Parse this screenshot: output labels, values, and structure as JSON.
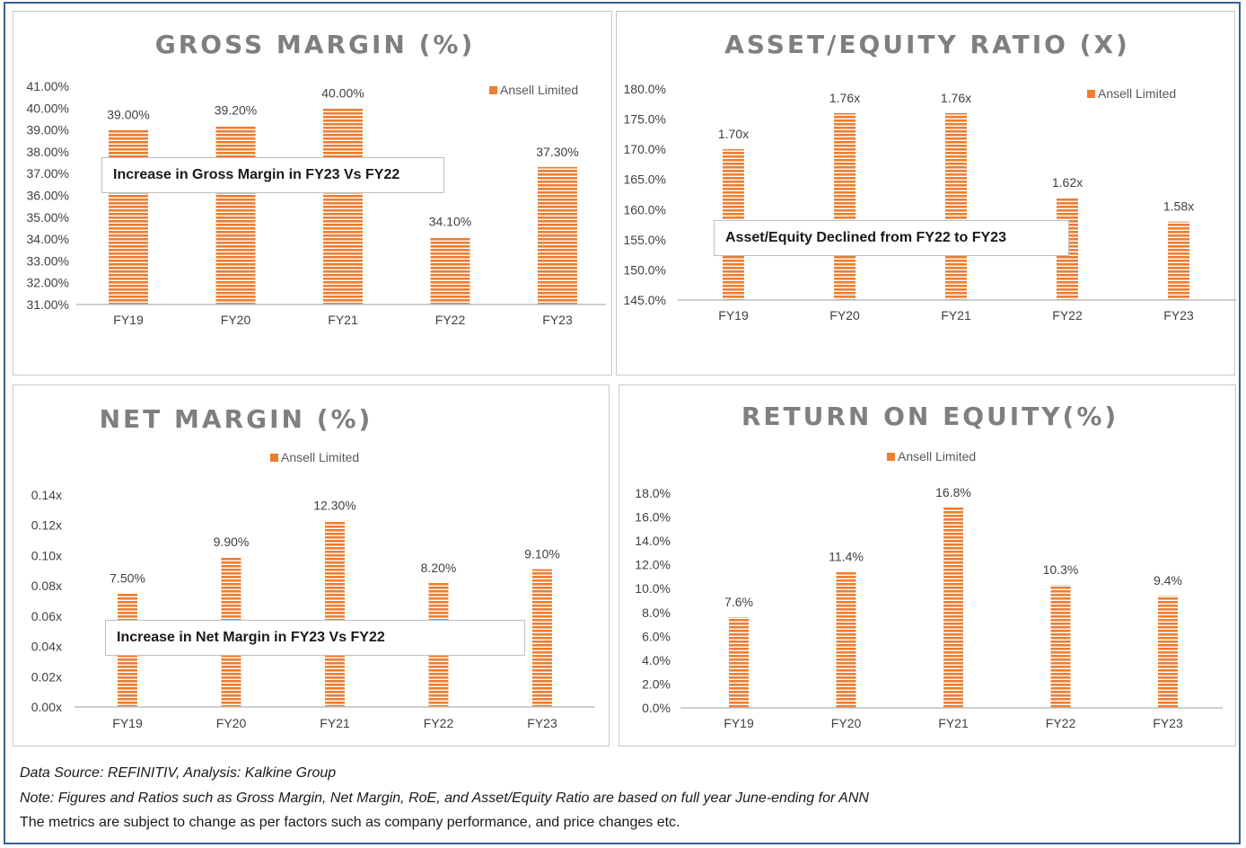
{
  "legend_label": "Ansell Limited",
  "colors": {
    "bar": "#ed7d31",
    "stripe": "#ffffff",
    "axis": "#bfbfbf",
    "border": "#3a5f96"
  },
  "chart_data": [
    {
      "type": "bar",
      "title": "GROSS MARGIN (%)",
      "categories": [
        "FY19",
        "FY20",
        "FY21",
        "FY22",
        "FY23"
      ],
      "series": [
        {
          "name": "Ansell Limited",
          "values": [
            39.0,
            39.2,
            40.0,
            34.1,
            37.3
          ]
        }
      ],
      "data_labels": [
        "39.00%",
        "39.20%",
        "40.00%",
        "34.10%",
        "37.30%"
      ],
      "ylim": [
        31,
        41
      ],
      "yticks": [
        31,
        32,
        33,
        34,
        35,
        36,
        37,
        38,
        39,
        40,
        41
      ],
      "ytick_labels": [
        "31.00%",
        "32.00%",
        "33.00%",
        "34.00%",
        "35.00%",
        "36.00%",
        "37.00%",
        "38.00%",
        "39.00%",
        "40.00%",
        "41.00%"
      ],
      "legend_position": "top-right",
      "annotation": "Increase in Gross Margin in FY23 Vs FY22",
      "grid": false
    },
    {
      "type": "bar",
      "title": "ASSET/EQUITY RATIO (X)",
      "categories": [
        "FY19",
        "FY20",
        "FY21",
        "FY22",
        "FY23"
      ],
      "series": [
        {
          "name": "Ansell Limited",
          "values": [
            1.7,
            1.76,
            1.76,
            1.62,
            1.58
          ]
        }
      ],
      "data_labels": [
        "1.70x",
        "1.76x",
        "1.76x",
        "1.62x",
        "1.58x"
      ],
      "ylim": [
        1.45,
        1.8
      ],
      "yticks": [
        1.45,
        1.5,
        1.55,
        1.6,
        1.65,
        1.7,
        1.75,
        1.8
      ],
      "ytick_labels": [
        "145.0%",
        "150.0%",
        "155.0%",
        "160.0%",
        "165.0%",
        "170.0%",
        "175.0%",
        "180.0%"
      ],
      "legend_position": "top-right",
      "annotation": "Asset/Equity Declined from FY22 to FY23",
      "grid": false
    },
    {
      "type": "bar",
      "title": "NET MARGIN (%)",
      "categories": [
        "FY19",
        "FY20",
        "FY21",
        "FY22",
        "FY23"
      ],
      "series": [
        {
          "name": "Ansell Limited",
          "values": [
            0.075,
            0.099,
            0.123,
            0.082,
            0.091
          ]
        }
      ],
      "data_labels": [
        "7.50%",
        "9.90%",
        "12.30%",
        "8.20%",
        "9.10%"
      ],
      "ylim": [
        0,
        0.14
      ],
      "yticks": [
        0,
        0.02,
        0.04,
        0.06,
        0.08,
        0.1,
        0.12,
        0.14
      ],
      "ytick_labels": [
        "0.00x",
        "0.02x",
        "0.04x",
        "0.06x",
        "0.08x",
        "0.10x",
        "0.12x",
        "0.14x"
      ],
      "legend_position": "top",
      "annotation": "Increase in Net Margin in FY23 Vs FY22",
      "grid": false
    },
    {
      "type": "bar",
      "title": "RETURN ON EQUITY(%)",
      "categories": [
        "FY19",
        "FY20",
        "FY21",
        "FY22",
        "FY23"
      ],
      "series": [
        {
          "name": "Ansell Limited",
          "values": [
            7.6,
            11.4,
            16.8,
            10.3,
            9.4
          ]
        }
      ],
      "data_labels": [
        "7.6%",
        "11.4%",
        "16.8%",
        "10.3%",
        "9.4%"
      ],
      "ylim": [
        0,
        18
      ],
      "yticks": [
        0,
        2,
        4,
        6,
        8,
        10,
        12,
        14,
        16,
        18
      ],
      "ytick_labels": [
        "0.0%",
        "2.0%",
        "4.0%",
        "6.0%",
        "8.0%",
        "10.0%",
        "12.0%",
        "14.0%",
        "16.0%",
        "18.0%"
      ],
      "legend_position": "top",
      "annotation": "",
      "grid": false
    }
  ],
  "footer": {
    "source": "Data Source: REFINITIV, Analysis: Kalkine Group",
    "note": "Note: Figures and Ratios such as Gross Margin, Net Margin, RoE, and Asset/Equity Ratio are based on full year June-ending for ANN",
    "disclaimer": "The metrics are subject to change as per factors such as company performance, and price changes etc."
  }
}
